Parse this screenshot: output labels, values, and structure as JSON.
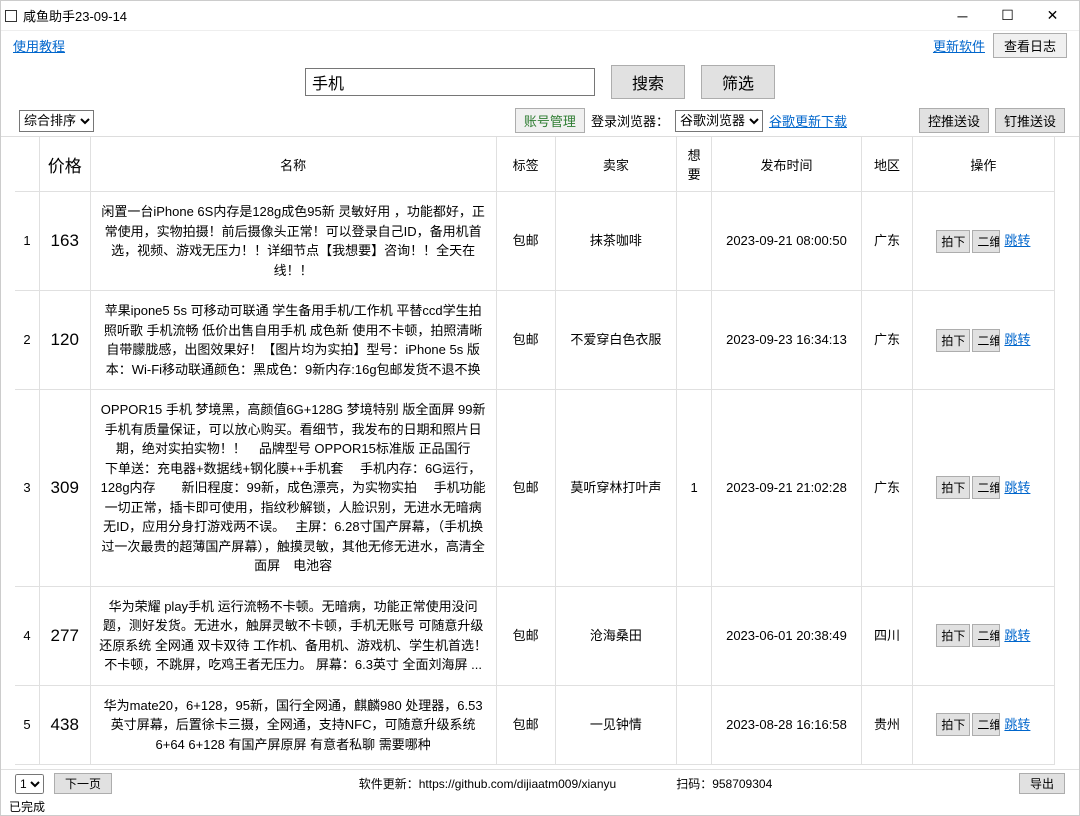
{
  "window": {
    "title": "咸鱼助手23-09-14"
  },
  "topbar": {
    "tutorial": "使用教程",
    "update": "更新软件",
    "view_log": "查看日志"
  },
  "search": {
    "value": "手机",
    "search_btn": "搜索",
    "filter_btn": "筛选"
  },
  "controlbar": {
    "sort_option": "综合排序",
    "account_btn": "账号管理",
    "browser_label": "登录浏览器：",
    "browser_option": "谷歌浏览器",
    "chrome_update": "谷歌更新下载",
    "push_btn": "控推送设",
    "pin_btn": "钉推送设"
  },
  "columns": {
    "idx": "",
    "price": "价格",
    "name": "名称",
    "tag": "标签",
    "seller": "卖家",
    "want": "想要",
    "time": "发布时间",
    "region": "地区",
    "action": "操作"
  },
  "action_labels": {
    "buy": "拍下",
    "qr": "二维码",
    "jump": "跳转"
  },
  "rows": [
    {
      "idx": "1",
      "price": "163",
      "name": "闲置一台iPhone 6S内存是128g成色95新 灵敏好用 ，功能都好，正常使用，实物拍摄！前后摄像头正常！可以登录自己ID，备用机首选，视频、游戏无压力！！详细节点【我想要】咨询！！全天在线！！",
      "tag": "包邮",
      "seller": "抹茶咖啡",
      "want": "",
      "time": "2023-09-21 08:00:50",
      "region": "广东"
    },
    {
      "idx": "2",
      "price": "120",
      "name": "苹果ipone5 5s 可移动可联通 学生备用手机/工作机 平替ccd学生拍照听歌  手机流畅  低价出售自用手机  成色新 使用不卡顿，拍照清晰自带朦胧感，出图效果好！【图片均为实拍】型号：iPhone  5s 版本：Wi-Fi移动联通颜色：黑成色：9新内存:16g包邮发货不退不换",
      "tag": "包邮",
      "seller": "不爱穿白色衣服",
      "want": "",
      "time": "2023-09-23 16:34:13",
      "region": "广东"
    },
    {
      "idx": "3",
      "price": "309",
      "name": "OPPOR15 手机 梦境黑，高颜值6G+128G 梦境特别 版全面屏 99新手机有质量保证，可以放心购买。看细节，我发布的日期和照片日期，绝对实拍实物！！　品牌型号 OPPOR15标准版 正品国行　　下单送：充电器+数据线+钢化膜++手机套　 手机内存：6G运行，128g内存　　新旧程度：99新，成色漂亮，为实物实拍　 手机功能一切正常，插卡即可使用，指纹秒解锁，人脸识别，无进水无暗病无ID，应用分身打游戏两不误。　 主屏：6.28寸国产屏幕，（手机换过一次最贵的超薄国产屏幕），触摸灵敏，其他无修无进水，高清全面屏　电池容",
      "tag": "包邮",
      "seller": "莫听穿林打叶声",
      "want": "1",
      "time": "2023-09-21 21:02:28",
      "region": "广东"
    },
    {
      "idx": "4",
      "price": "277",
      "name": "华为荣耀 play手机 运行流畅不卡顿。无暗病，功能正常使用没问题，测好发货。无进水，触屏灵敏不卡顿，手机无账号 可随意升级还原系统 全网通 双卡双待  工作机、备用机、游戏机、学生机首选！不卡顿，不跳屏，吃鸡王者无压力。  屏幕：6.3英寸 全面刘海屏 ...",
      "tag": "包邮",
      "seller": "沧海桑田",
      "want": "",
      "time": "2023-06-01 20:38:49",
      "region": "四川"
    },
    {
      "idx": "5",
      "price": "438",
      "name": "华为mate20，6+128，95新，国行全网通，麒麟980 处理器，6.53英寸屏幕，后置徐卡三摄，全网通，支持NFC，可随意升级系统 6+64   6+128 有国产屏原屏 有意者私聊 需要哪种",
      "tag": "包邮",
      "seller": "一见钟情",
      "want": "",
      "time": "2023-08-28 16:16:58",
      "region": "贵州"
    }
  ],
  "footer": {
    "page_option": "1",
    "next_page": "下一页",
    "update_info": "软件更新：https://github.com/dijiaatm009/xianyu",
    "qr_info": "扫码：958709304",
    "export_btn": "导出"
  },
  "status": {
    "text": "已完成"
  }
}
